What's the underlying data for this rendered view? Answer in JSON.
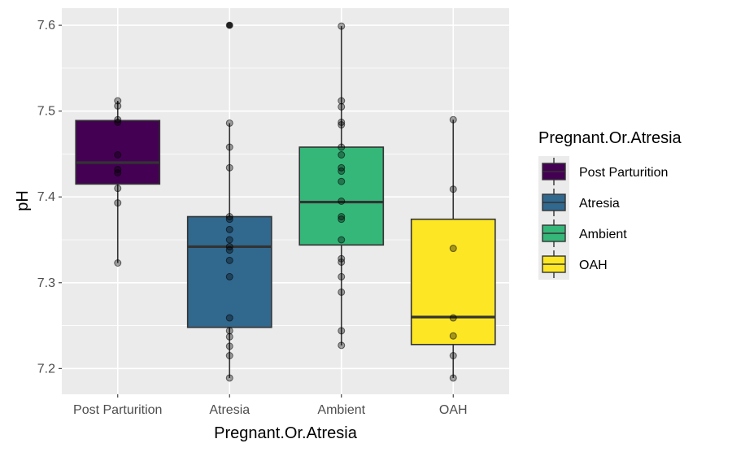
{
  "chart_data": {
    "type": "boxplot",
    "xlabel": "Pregnant.Or.Atresia",
    "ylabel": "pH",
    "ylim": [
      7.17,
      7.62
    ],
    "yticks": [
      7.2,
      7.3,
      7.4,
      7.5,
      7.6
    ],
    "ytick_labels": [
      "7.2",
      "7.3",
      "7.4",
      "7.5",
      "7.6"
    ],
    "categories": [
      "Post Parturition",
      "Atresia",
      "Ambient",
      "OAH"
    ],
    "grid": true,
    "legend": {
      "title": "Pregnant.Or.Atresia",
      "position": "right",
      "entries": [
        "Post Parturition",
        "Atresia",
        "Ambient",
        "OAH"
      ]
    },
    "series": [
      {
        "category": "Post Parturition",
        "color": "#440154",
        "q1": 7.415,
        "median": 7.44,
        "q3": 7.489,
        "whisker_low": 7.323,
        "whisker_high": 7.512,
        "outliers": [],
        "points": [
          7.512,
          7.506,
          7.49,
          7.487,
          7.449,
          7.432,
          7.428,
          7.41,
          7.393,
          7.323
        ]
      },
      {
        "category": "Atresia",
        "color": "#31688e",
        "q1": 7.248,
        "median": 7.342,
        "q3": 7.377,
        "whisker_low": 7.189,
        "whisker_high": 7.486,
        "outliers": [
          7.6
        ],
        "points": [
          7.6,
          7.486,
          7.458,
          7.434,
          7.377,
          7.374,
          7.362,
          7.35,
          7.342,
          7.338,
          7.326,
          7.307,
          7.259,
          7.244,
          7.237,
          7.226,
          7.215,
          7.189
        ]
      },
      {
        "category": "Ambient",
        "color": "#35b779",
        "q1": 7.344,
        "median": 7.394,
        "q3": 7.458,
        "whisker_low": 7.227,
        "whisker_high": 7.599,
        "outliers": [],
        "points": [
          7.599,
          7.512,
          7.505,
          7.487,
          7.484,
          7.458,
          7.449,
          7.434,
          7.43,
          7.418,
          7.395,
          7.377,
          7.374,
          7.35,
          7.328,
          7.324,
          7.307,
          7.289,
          7.244,
          7.227
        ]
      },
      {
        "category": "OAH",
        "color": "#fde725",
        "q1": 7.228,
        "median": 7.26,
        "q3": 7.374,
        "whisker_low": 7.189,
        "whisker_high": 7.49,
        "outliers": [],
        "points": [
          7.49,
          7.409,
          7.34,
          7.259,
          7.238,
          7.215,
          7.189
        ]
      }
    ]
  }
}
